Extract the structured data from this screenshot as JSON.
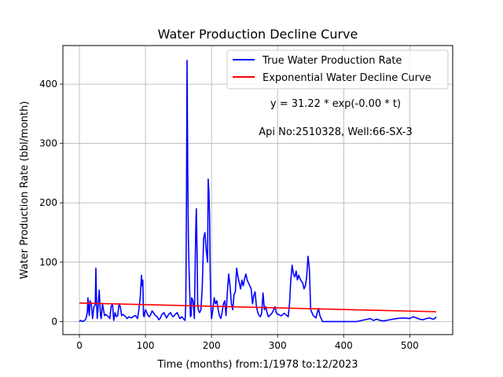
{
  "chart_data": {
    "type": "line",
    "title": "Water Production Decline Curve",
    "xlabel": "Time (months) from:1/1978 to:12/2023",
    "ylabel": "Water Production Rate (bbl/month)",
    "xlim": [
      -25,
      565
    ],
    "ylim": [
      -22,
      465
    ],
    "grid": true,
    "legend_position": "top-right",
    "x_ticks": [
      0,
      100,
      200,
      300,
      400,
      500
    ],
    "y_ticks": [
      0,
      100,
      200,
      300,
      400
    ],
    "annotations": [
      "y = 31.22 * exp(-0.00 * t)",
      "Api No:2510328, Well:66-SX-3"
    ],
    "series": [
      {
        "name": "True Water Production Rate",
        "color": "#0000ff",
        "x": [
          0,
          2,
          5,
          8,
          10,
          12,
          13,
          14,
          15,
          16,
          18,
          20,
          22,
          24,
          25,
          26,
          27,
          28,
          30,
          32,
          33,
          35,
          38,
          40,
          42,
          44,
          46,
          48,
          50,
          52,
          54,
          56,
          58,
          60,
          62,
          64,
          66,
          68,
          70,
          72,
          75,
          78,
          80,
          82,
          85,
          88,
          90,
          92,
          94,
          95,
          96,
          97,
          98,
          99,
          100,
          102,
          104,
          106,
          108,
          110,
          112,
          115,
          118,
          120,
          122,
          125,
          128,
          130,
          132,
          135,
          138,
          140,
          142,
          145,
          148,
          150,
          152,
          155,
          158,
          160,
          161,
          162,
          163,
          164,
          165,
          166,
          167,
          168,
          169,
          170,
          172,
          174,
          176,
          177,
          178,
          179,
          180,
          182,
          184,
          186,
          188,
          190,
          192,
          194,
          195,
          196,
          197,
          198,
          199,
          200,
          202,
          204,
          206,
          208,
          210,
          212,
          214,
          216,
          218,
          220,
          222,
          224,
          226,
          228,
          230,
          232,
          234,
          236,
          238,
          240,
          242,
          244,
          246,
          248,
          250,
          252,
          254,
          256,
          258,
          260,
          262,
          264,
          266,
          268,
          270,
          272,
          274,
          276,
          278,
          280,
          282,
          284,
          286,
          288,
          290,
          292,
          294,
          296,
          298,
          300,
          302,
          304,
          306,
          308,
          310,
          312,
          314,
          316,
          318,
          320,
          322,
          324,
          326,
          328,
          330,
          332,
          334,
          336,
          338,
          340,
          342,
          344,
          346,
          348,
          350,
          352,
          354,
          356,
          358,
          360,
          362,
          364,
          366,
          368,
          370,
          380,
          400,
          420,
          440,
          445,
          448,
          450,
          455,
          460,
          465,
          470,
          480,
          490,
          500,
          505,
          510,
          515,
          520,
          525,
          530,
          535,
          538,
          540
        ],
        "y": [
          0,
          2,
          0,
          2,
          5,
          15,
          40,
          20,
          10,
          35,
          30,
          5,
          25,
          28,
          90,
          30,
          5,
          20,
          53,
          10,
          5,
          30,
          10,
          12,
          10,
          8,
          5,
          25,
          30,
          2,
          15,
          8,
          10,
          30,
          25,
          10,
          12,
          10,
          8,
          5,
          8,
          6,
          7,
          9,
          10,
          5,
          20,
          40,
          78,
          60,
          70,
          10,
          8,
          15,
          20,
          15,
          10,
          8,
          12,
          18,
          15,
          10,
          8,
          3,
          5,
          12,
          15,
          10,
          6,
          12,
          15,
          10,
          8,
          12,
          15,
          10,
          5,
          8,
          4,
          2,
          30,
          180,
          440,
          250,
          140,
          85,
          50,
          8,
          10,
          40,
          35,
          5,
          150,
          190,
          120,
          30,
          20,
          15,
          20,
          60,
          140,
          150,
          120,
          100,
          240,
          220,
          180,
          80,
          30,
          5,
          20,
          40,
          30,
          35,
          20,
          10,
          5,
          15,
          30,
          35,
          10,
          50,
          80,
          60,
          30,
          20,
          45,
          50,
          90,
          75,
          65,
          55,
          70,
          60,
          72,
          80,
          70,
          65,
          60,
          55,
          30,
          45,
          50,
          25,
          15,
          10,
          8,
          15,
          48,
          20,
          25,
          15,
          8,
          10,
          12,
          15,
          20,
          25,
          15,
          12,
          12,
          10,
          10,
          12,
          14,
          12,
          10,
          8,
          30,
          70,
          95,
          80,
          75,
          85,
          70,
          78,
          72,
          68,
          65,
          55,
          60,
          75,
          110,
          90,
          20,
          15,
          10,
          8,
          6,
          15,
          22,
          10,
          5,
          0,
          0,
          0,
          0,
          0,
          5,
          2,
          3,
          4,
          2,
          1,
          2,
          3,
          5,
          6,
          5,
          8,
          6,
          4,
          3,
          5,
          6,
          4,
          5,
          8
        ]
      },
      {
        "name": "Exponential Water Decline Curve",
        "color": "#ff0000",
        "x": [
          0,
          540
        ],
        "y": [
          31.22,
          16.5
        ]
      }
    ]
  }
}
